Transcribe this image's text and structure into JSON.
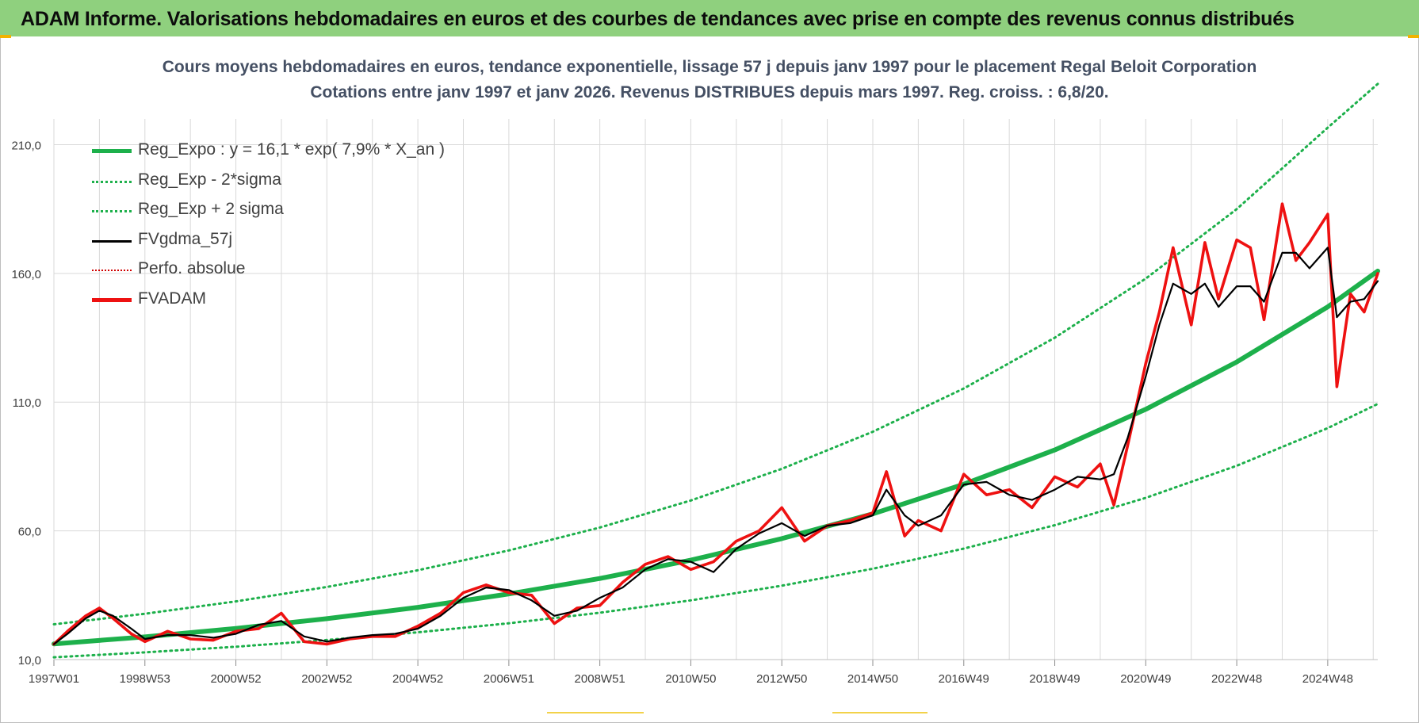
{
  "banner": {
    "title": "ADAM Informe. Valorisations hebdomadaires en euros et des courbes de tendances avec prise en compte des revenus connus distribués"
  },
  "colors": {
    "banner": "#8fd07e",
    "reg_expo": "#1db04b",
    "sigma_bands": "#1db04b",
    "fvgdma": "#000000",
    "perfo": "#d00000",
    "fvadam": "#ee1111",
    "grid": "#d9d9d9"
  },
  "chart_data": {
    "type": "line",
    "title": "Cours moyens hebdomadaires en euros, tendance exponentielle, lissage 57 j depuis janv 1997  pour le placement Regal Beloit Corporation",
    "subtitle": "Cotations entre janv 1997 et janv 2026. Revenus DISTRIBUES depuis mars 1997.  Reg. croiss. : 6,8/20.",
    "xlabel": "",
    "ylabel": "",
    "x_range": [
      1997.0,
      2026.1
    ],
    "ylim": [
      10,
      220
    ],
    "y_ticks": [
      "10,0",
      "60,0",
      "110,0",
      "160,0",
      "210,0"
    ],
    "x_ticks": [
      {
        "label": "1997W01",
        "year": 1997.0
      },
      {
        "label": "1998W53",
        "year": 1999.0
      },
      {
        "label": "2000W52",
        "year": 2001.0
      },
      {
        "label": "2002W52",
        "year": 2003.0
      },
      {
        "label": "2004W52",
        "year": 2005.0
      },
      {
        "label": "2006W51",
        "year": 2007.0
      },
      {
        "label": "2008W51",
        "year": 2009.0
      },
      {
        "label": "2010W50",
        "year": 2011.0
      },
      {
        "label": "2012W50",
        "year": 2013.0
      },
      {
        "label": "2014W50",
        "year": 2015.0
      },
      {
        "label": "2016W49",
        "year": 2017.0
      },
      {
        "label": "2018W49",
        "year": 2019.0
      },
      {
        "label": "2020W49",
        "year": 2021.0
      },
      {
        "label": "2022W48",
        "year": 2023.0
      },
      {
        "label": "2024W48",
        "year": 2025.0
      }
    ],
    "grid": true,
    "legend_position": "top-left",
    "series": [
      {
        "name": "Reg_Expo : y = 16,1 * exp( 7,9% *  X_an )",
        "style": "solid-thick",
        "x": [
          1997.0,
          1999.0,
          2001.0,
          2003.0,
          2005.0,
          2007.0,
          2009.0,
          2011.0,
          2013.0,
          2015.0,
          2017.0,
          2019.0,
          2021.0,
          2023.0,
          2025.0,
          2026.1
        ],
        "y": [
          16.1,
          18.8,
          22.1,
          25.9,
          30.3,
          35.5,
          41.5,
          48.6,
          57.0,
          66.6,
          78.1,
          91.4,
          107.2,
          125.6,
          147.0,
          160.9
        ]
      },
      {
        "name": "Reg_Exp - 2*sigma",
        "style": "dotted",
        "x": [
          1997.0,
          1999.0,
          2001.0,
          2003.0,
          2005.0,
          2007.0,
          2009.0,
          2011.0,
          2013.0,
          2015.0,
          2017.0,
          2019.0,
          2021.0,
          2023.0,
          2025.0,
          2026.1
        ],
        "y": [
          10.9,
          12.8,
          15.0,
          17.6,
          20.6,
          24.1,
          28.2,
          33.0,
          38.7,
          45.3,
          53.1,
          62.2,
          72.8,
          85.3,
          99.9,
          109.3
        ]
      },
      {
        "name": "Reg_Exp + 2 sigma",
        "style": "dotted",
        "x": [
          1997.0,
          1999.0,
          2001.0,
          2003.0,
          2005.0,
          2007.0,
          2009.0,
          2011.0,
          2013.0,
          2015.0,
          2017.0,
          2019.0,
          2021.0,
          2023.0,
          2025.0,
          2026.1
        ],
        "y": [
          23.7,
          27.8,
          32.6,
          38.2,
          44.7,
          52.4,
          61.3,
          71.8,
          84.1,
          98.5,
          115.3,
          135.0,
          158.0,
          185.0,
          216.6,
          233.6
        ]
      },
      {
        "name": "FVgdma_57j",
        "style": "solid-thin",
        "x": [
          1997.0,
          1997.3,
          1997.7,
          1998.0,
          1998.3,
          1998.7,
          1999.0,
          1999.5,
          2000.0,
          2000.5,
          2001.0,
          2001.5,
          2002.0,
          2002.5,
          2003.0,
          2003.5,
          2004.0,
          2004.5,
          2005.0,
          2005.5,
          2006.0,
          2006.5,
          2007.0,
          2007.5,
          2008.0,
          2008.5,
          2009.0,
          2009.5,
          2010.0,
          2010.5,
          2011.0,
          2011.5,
          2012.0,
          2012.5,
          2013.0,
          2013.5,
          2014.0,
          2014.5,
          2015.0,
          2015.3,
          2015.7,
          2016.0,
          2016.5,
          2017.0,
          2017.5,
          2018.0,
          2018.5,
          2019.0,
          2019.5,
          2020.0,
          2020.3,
          2020.6,
          2021.0,
          2021.3,
          2021.6,
          2022.0,
          2022.3,
          2022.6,
          2023.0,
          2023.3,
          2023.6,
          2024.0,
          2024.3,
          2024.6,
          2025.0,
          2025.2,
          2025.5,
          2025.8,
          2026.1
        ],
        "y": [
          16,
          20,
          26,
          29,
          27,
          22,
          18,
          19.5,
          19.5,
          18.5,
          20,
          23.5,
          25,
          19,
          17,
          18.5,
          19.5,
          20,
          22,
          27,
          34,
          38,
          37,
          33,
          27,
          29,
          34,
          38,
          45,
          49,
          48,
          44,
          53,
          59,
          63,
          58,
          62,
          63,
          66,
          76,
          66,
          62,
          66,
          78,
          79,
          74,
          72,
          76,
          81,
          80,
          82,
          96,
          120,
          140,
          156,
          152,
          156,
          147,
          155,
          155,
          149,
          168,
          168,
          162,
          170,
          143,
          149,
          150,
          157
        ]
      },
      {
        "name": "Perfo. absolue",
        "style": "dotted",
        "x": [],
        "y": []
      },
      {
        "name": "FVADAM",
        "style": "solid-thick",
        "x": [
          1997.0,
          1997.3,
          1997.7,
          1998.0,
          1998.3,
          1998.7,
          1999.0,
          1999.5,
          2000.0,
          2000.5,
          2001.0,
          2001.5,
          2002.0,
          2002.5,
          2003.0,
          2003.5,
          2004.0,
          2004.5,
          2005.0,
          2005.5,
          2006.0,
          2006.5,
          2007.0,
          2007.5,
          2008.0,
          2008.5,
          2009.0,
          2009.5,
          2010.0,
          2010.5,
          2011.0,
          2011.5,
          2012.0,
          2012.5,
          2013.0,
          2013.5,
          2014.0,
          2014.5,
          2015.0,
          2015.3,
          2015.7,
          2016.0,
          2016.5,
          2017.0,
          2017.5,
          2018.0,
          2018.5,
          2019.0,
          2019.5,
          2020.0,
          2020.3,
          2020.6,
          2021.0,
          2021.3,
          2021.6,
          2022.0,
          2022.3,
          2022.6,
          2023.0,
          2023.3,
          2023.6,
          2024.0,
          2024.3,
          2024.6,
          2025.0,
          2025.2,
          2025.5,
          2025.8,
          2026.1
        ],
        "y": [
          16,
          21,
          27,
          30,
          26,
          20,
          17,
          21,
          18,
          17.5,
          21,
          22,
          28,
          17,
          16,
          18,
          19,
          19,
          23,
          28,
          36,
          39,
          36,
          35,
          24,
          30,
          31,
          40,
          47,
          50,
          45,
          48,
          56,
          60,
          69,
          56,
          62,
          64,
          67,
          83,
          58,
          64,
          60,
          82,
          74,
          76,
          69,
          81,
          77,
          86,
          70,
          93,
          125,
          145,
          170,
          140,
          172,
          150,
          173,
          170,
          142,
          187,
          165,
          172,
          183,
          116,
          152,
          145,
          160
        ]
      }
    ]
  }
}
